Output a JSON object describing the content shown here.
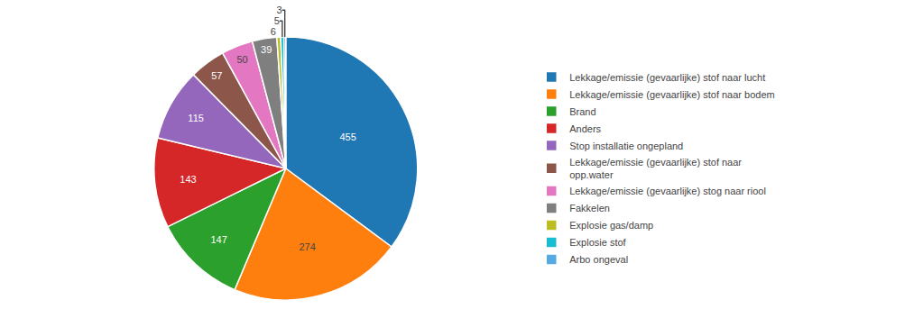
{
  "chart_data": {
    "type": "pie",
    "categories": [
      "Lekkage/emissie (gevaarlijke) stof naar lucht",
      "Lekkage/emissie (gevaarlijke) stof naar bodem",
      "Brand",
      "Anders",
      "Stop installatie ongepland",
      "Lekkage/emissie (gevaarlijke) stof naar\nopp.water",
      "Lekkage/emissie (gevaarlijke) stog naar riool",
      "Fakkelen",
      "Explosie gas/damp",
      "Explosie stof",
      "Arbo ongeval"
    ],
    "values": [
      455,
      274,
      147,
      143,
      115,
      57,
      50,
      39,
      6,
      5,
      3
    ],
    "data_labels": true,
    "legend": "right"
  }
}
